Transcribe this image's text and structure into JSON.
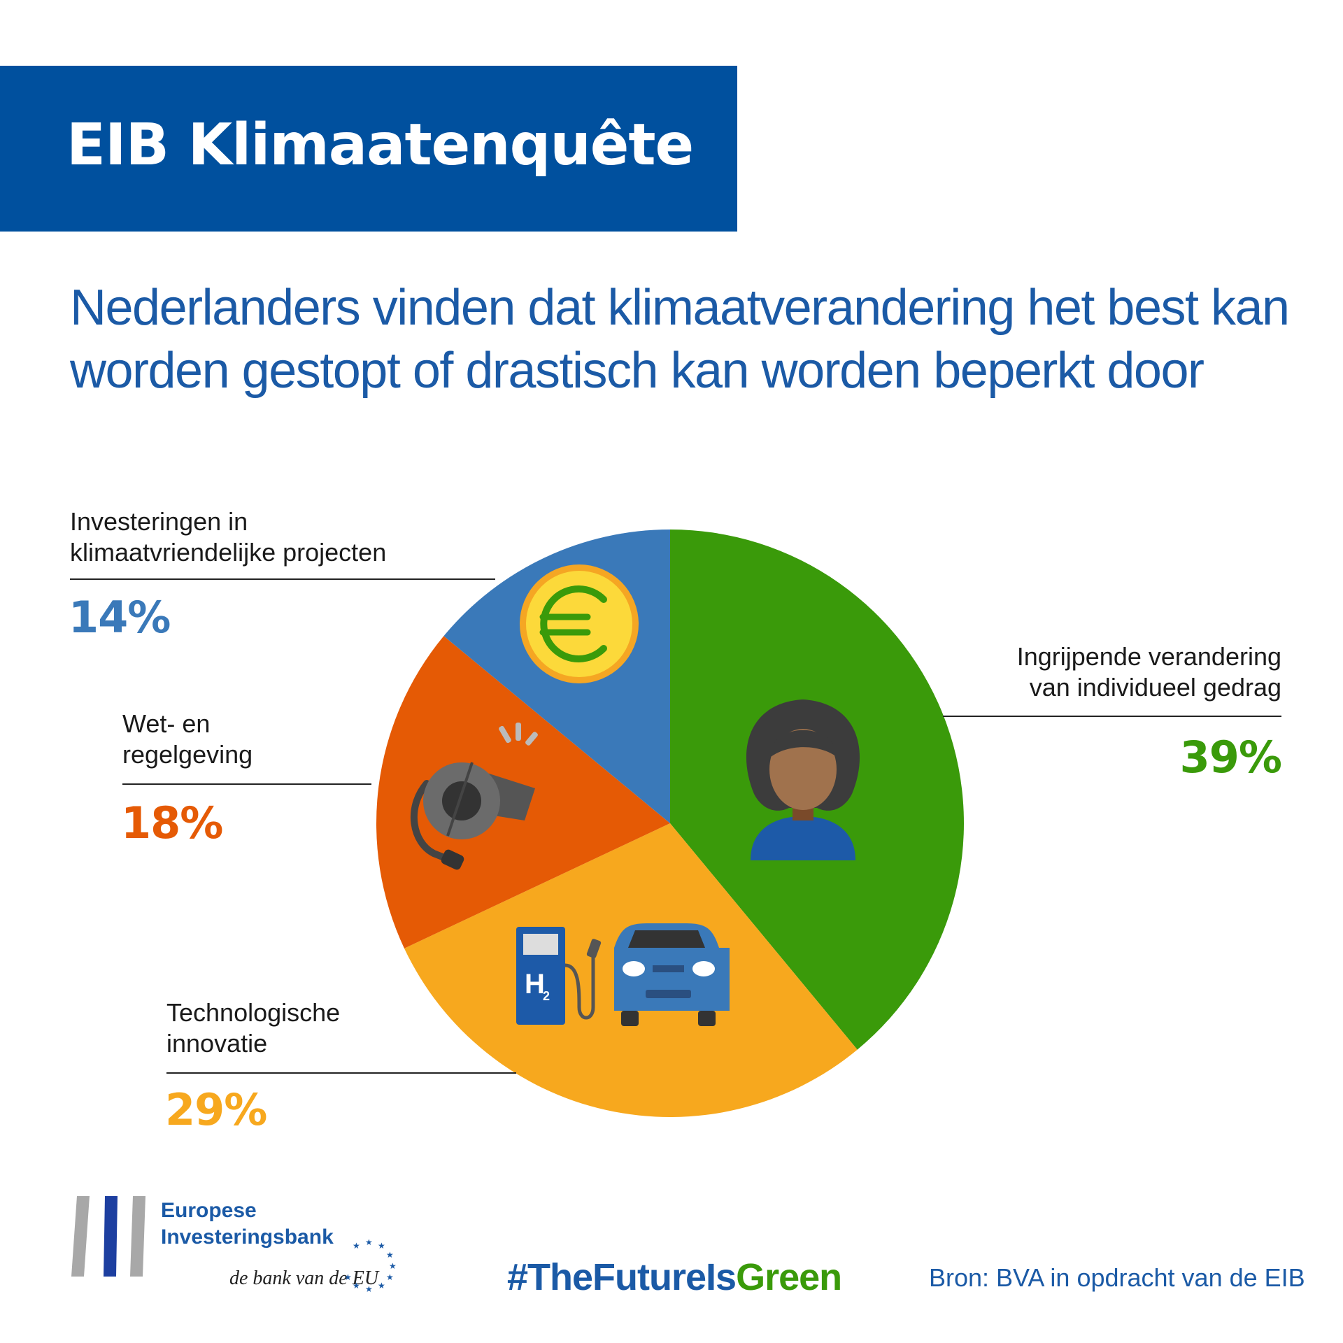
{
  "header": {
    "title": "EIB Klimaatenquête"
  },
  "subtitle": "Nederlanders vinden dat klimaatverandering het best kan worden gestopt of drastisch kan worden beperkt door",
  "colors": {
    "blue": "#3a79b9",
    "green": "#3a9a0a",
    "orange": "#e55a05",
    "yellow": "#f7a81e",
    "header": "#00509e",
    "title": "#1b5aa6"
  },
  "chart_data": {
    "type": "pie",
    "title": "Nederlanders vinden dat klimaatverandering het best kan worden gestopt of drastisch kan worden beperkt door",
    "slices": [
      {
        "label": "Ingrijpende verandering van individueel gedrag",
        "value": 39,
        "display": "39%",
        "color": "#3a9a0a",
        "icon": "woman-avatar-icon"
      },
      {
        "label": "Technologische innovatie",
        "value": 29,
        "display": "29%",
        "color": "#f7a81e",
        "icon": "hydrogen-car-icon"
      },
      {
        "label": "Wet- en regelgeving",
        "value": 18,
        "display": "18%",
        "color": "#e55a05",
        "icon": "whistle-icon"
      },
      {
        "label": "Investeringen in klimaatvriendelijke projecten",
        "value": 14,
        "display": "14%",
        "color": "#3a79b9",
        "icon": "euro-coin-icon"
      }
    ]
  },
  "labels": {
    "green": [
      "Ingrijpende verandering",
      "van individueel gedrag"
    ],
    "yellow": [
      "Technologische",
      "innovatie"
    ],
    "orange": [
      "Wet- en",
      "regelgeving"
    ],
    "blue": [
      "Investeringen in",
      "klimaatvriendelijke projecten"
    ]
  },
  "footer": {
    "org_line1": "Europese",
    "org_line2": "Investeringsbank",
    "tagline": "de bank van de EU",
    "hashtag_part1": "#TheFutureIs",
    "hashtag_part2": "Green",
    "source": "Bron: BVA in opdracht van de EIB"
  }
}
